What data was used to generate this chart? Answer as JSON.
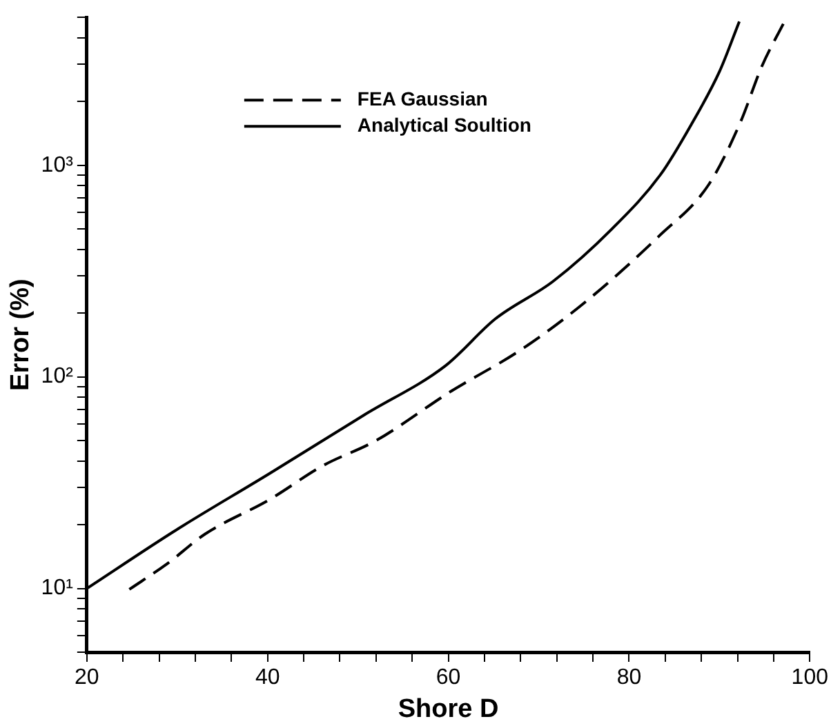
{
  "chart_data": {
    "type": "line",
    "xlabel": "Shore D",
    "ylabel": "Error (%)",
    "log": "y",
    "legend": "top left",
    "grid": false,
    "marker": "none",
    "xlim": [
      20,
      100
    ],
    "ylim": [
      5,
      5000
    ],
    "xticks": [
      20,
      {
        "value": 24,
        "label": null
      },
      {
        "value": 28,
        "label": null
      },
      {
        "value": 32,
        "label": null
      },
      {
        "value": 36,
        "label": null
      },
      40,
      {
        "value": 44,
        "label": null
      },
      {
        "value": 48,
        "label": null
      },
      {
        "value": 52,
        "label": null
      },
      {
        "value": 56,
        "label": null
      },
      60,
      {
        "value": 64,
        "label": null
      },
      {
        "value": 68,
        "label": null
      },
      {
        "value": 72,
        "label": null
      },
      {
        "value": 76,
        "label": null
      },
      80,
      {
        "value": 84,
        "label": null
      },
      {
        "value": 88,
        "label": null
      },
      {
        "value": 92,
        "label": null
      },
      {
        "value": 96,
        "label": null
      },
      100
    ],
    "yticks": [
      {
        "value": 5,
        "label": null
      },
      {
        "value": 6,
        "label": null
      },
      {
        "value": 7,
        "label": null
      },
      {
        "value": 8,
        "label": null
      },
      {
        "value": 9,
        "label": null
      },
      {
        "value": 10,
        "label": "10¹"
      },
      {
        "value": 20,
        "label": null
      },
      {
        "value": 30,
        "label": null
      },
      {
        "value": 40,
        "label": null
      },
      {
        "value": 50,
        "label": null
      },
      {
        "value": 60,
        "label": null
      },
      {
        "value": 70,
        "label": null
      },
      {
        "value": 80,
        "label": null
      },
      {
        "value": 90,
        "label": null
      },
      {
        "value": 100,
        "label": "10²"
      },
      {
        "value": 200,
        "label": null
      },
      {
        "value": 300,
        "label": null
      },
      {
        "value": 400,
        "label": null
      },
      {
        "value": 500,
        "label": null
      },
      {
        "value": 600,
        "label": null
      },
      {
        "value": 700,
        "label": null
      },
      {
        "value": 800,
        "label": null
      },
      {
        "value": 900,
        "label": null
      },
      {
        "value": 1000,
        "label": "10³"
      },
      {
        "value": 2000,
        "label": null
      },
      {
        "value": 3000,
        "label": null
      },
      {
        "value": 4000,
        "label": null
      },
      {
        "value": 5000,
        "label": null
      }
    ],
    "series": [
      {
        "name": "FEA Gaussian",
        "color": "#000000",
        "line_style": "dashed",
        "x": [
          24.7,
          28.9,
          33.1,
          40.2,
          46.1,
          52.0,
          60.3,
          68.0,
          75.0,
          83.3,
          88.8,
          92.3,
          94.7,
          97.2
        ],
        "values": [
          9.9,
          13.1,
          18.1,
          26.3,
          38,
          50,
          85.5,
          134,
          223,
          462,
          809,
          1590,
          2940,
          4780
        ]
      },
      {
        "name": "Analytical Soultion",
        "color": "#000000",
        "line_style": "solid",
        "x": [
          20,
          29.8,
          40.2,
          50.8,
          59.7,
          65.2,
          71.6,
          78.1,
          83.5,
          87.0,
          90.0,
          92.2
        ],
        "values": [
          10,
          18.8,
          34.9,
          66.5,
          113,
          188,
          283,
          500,
          906,
          1590,
          2770,
          4780
        ]
      }
    ]
  }
}
